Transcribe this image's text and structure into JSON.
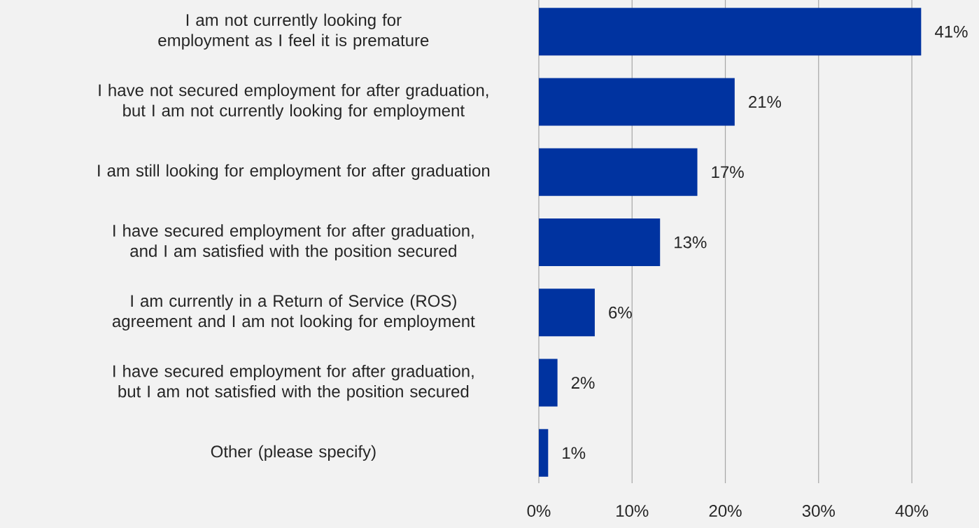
{
  "chart_data": {
    "type": "bar",
    "orientation": "horizontal",
    "categories": [
      "I am not currently looking for employment as I feel it is premature",
      "I have not secured employment for after graduation, but I am not currently looking for employment",
      "I am still looking for employment for after graduation",
      "I have secured employment for after graduation, and I am satisfied with the position secured",
      "I am currently in a Return of Service (ROS) agreement and I am not looking for employment",
      "I have secured employment for after graduation, but I am not satisfied with the position secured",
      "Other (please specify)"
    ],
    "values": [
      41,
      21,
      17,
      13,
      6,
      2,
      1
    ],
    "value_labels": [
      "41%",
      "21%",
      "17%",
      "13%",
      "6%",
      "2%",
      "1%"
    ],
    "color": "#0033a0",
    "xlim": [
      0,
      47.2
    ],
    "xticks": [
      {
        "value": 0,
        "label": "0%"
      },
      {
        "value": 10,
        "label": "10%"
      },
      {
        "value": 20,
        "label": "20%"
      },
      {
        "value": 30,
        "label": "30%"
      },
      {
        "value": 40,
        "label": "40%"
      }
    ],
    "grid": "x"
  }
}
